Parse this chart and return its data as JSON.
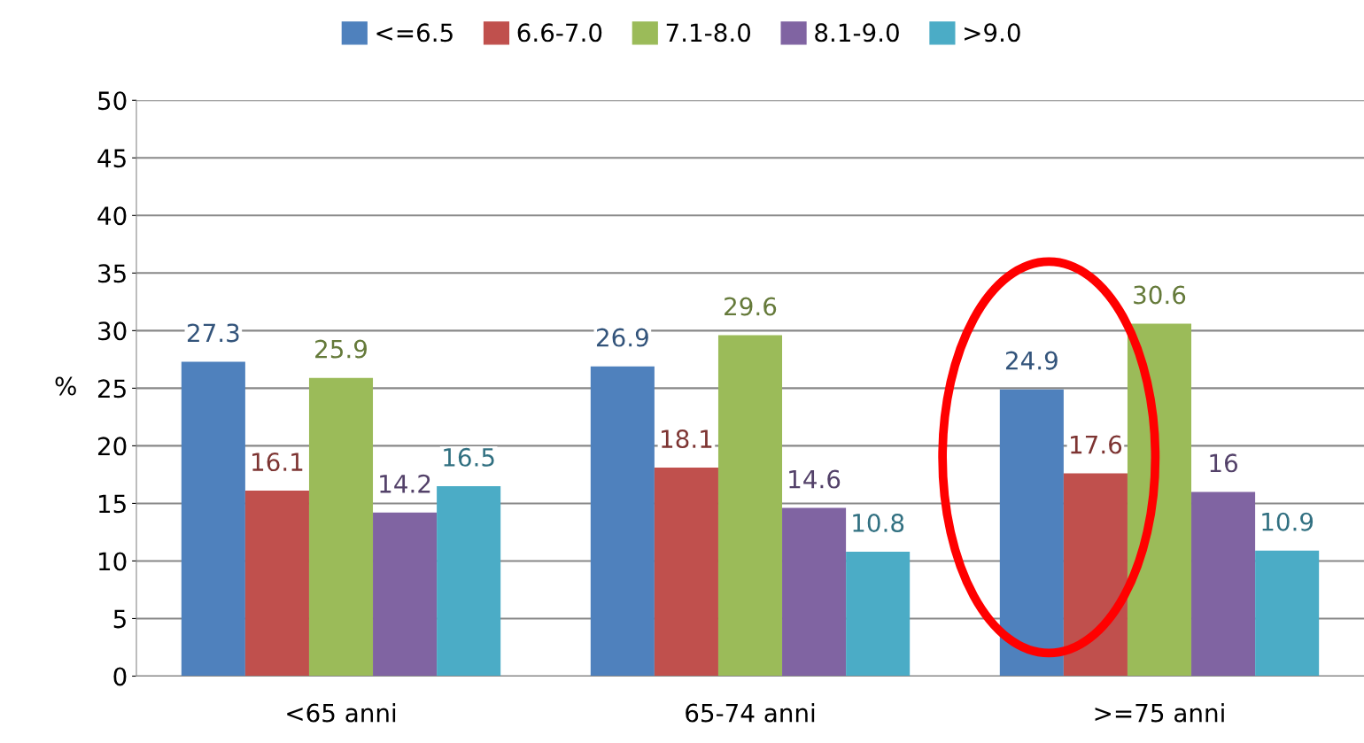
{
  "chart_data": {
    "type": "bar",
    "ylabel": "%",
    "categories": [
      "<65 anni",
      "65-74 anni",
      ">=75 anni"
    ],
    "series": [
      {
        "name": "<=6.5",
        "color": "#4f81bd",
        "values": [
          27.3,
          26.9,
          24.9
        ]
      },
      {
        "name": "6.6-7.0",
        "color": "#c0504d",
        "values": [
          16.1,
          18.1,
          17.6
        ]
      },
      {
        "name": "7.1-8.0",
        "color": "#9bbb59",
        "values": [
          25.9,
          29.6,
          30.6
        ]
      },
      {
        "name": "8.1-9.0",
        "color": "#8064a2",
        "values": [
          14.2,
          14.6,
          16
        ]
      },
      {
        "name": ">9.0",
        "color": "#4bacc6",
        "values": [
          16.5,
          10.8,
          10.9
        ]
      }
    ],
    "ylim": [
      0,
      50
    ],
    "yticks": [
      0,
      5,
      10,
      15,
      20,
      25,
      30,
      35,
      40,
      45,
      50
    ],
    "grid": "y",
    "legend": "top",
    "data_labels": true
  }
}
